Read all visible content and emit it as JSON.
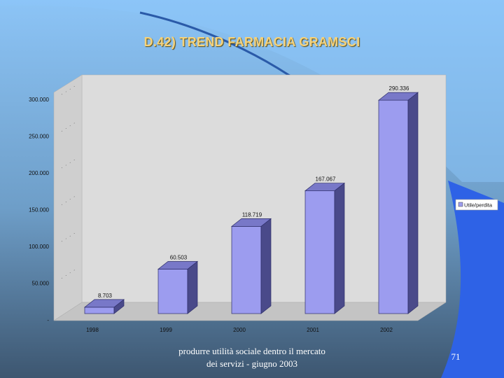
{
  "slide": {
    "title": "D.42) TREND FARMACIA GRAMSCI",
    "footer": "produrre utilità sociale dentro il mercato dei servizi - giugno 2003",
    "page_number": "71"
  },
  "chart_data": {
    "type": "bar",
    "title": "",
    "xlabel": "",
    "ylabel": "",
    "categories": [
      "1998",
      "1999",
      "2000",
      "2001",
      "2002"
    ],
    "series": [
      {
        "name": "Utile/perdita",
        "values": [
          8703,
          60503,
          118719,
          167067,
          290336
        ],
        "labels": [
          "8.703",
          "60.503",
          "118.719",
          "167.067",
          "290.336"
        ],
        "color": "#9c9cef"
      }
    ],
    "ylim": [
      0,
      300000
    ],
    "y_ticks": [
      "-",
      "50.000",
      "100.000",
      "150.000",
      "200.000",
      "250.000",
      "300.000"
    ],
    "grid": false,
    "legend": "right",
    "bar_style": "3d"
  }
}
